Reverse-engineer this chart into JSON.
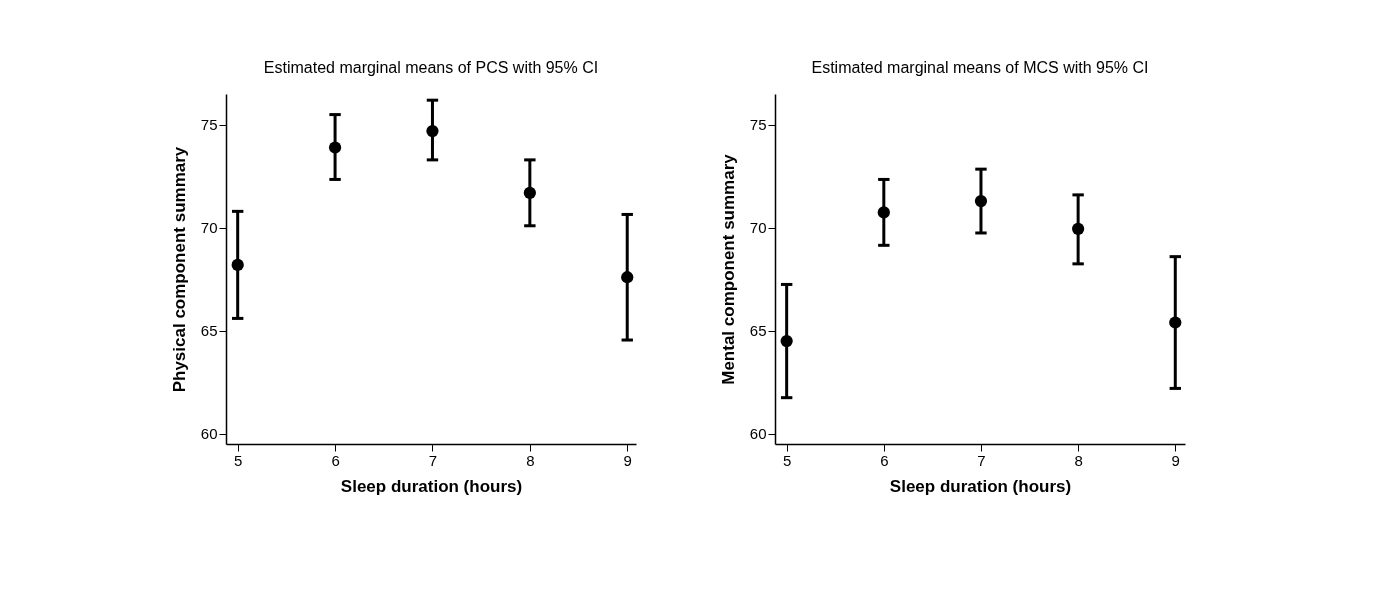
{
  "chart_data": [
    {
      "type": "scatter",
      "title": "Estimated marginal means of PCS with 95% CI",
      "xlabel": "Sleep duration (hours)",
      "ylabel": "Physical component summary",
      "x": [
        5,
        6,
        7,
        8,
        9
      ],
      "series": [
        {
          "color": "#000000",
          "values": [
            68.2,
            73.9,
            74.7,
            71.7,
            67.6
          ],
          "errors": [
            [
              65.6,
              70.8
            ],
            [
              72.35,
              75.5
            ],
            [
              73.3,
              76.2
            ],
            [
              70.1,
              73.3
            ],
            [
              64.55,
              70.65
            ]
          ]
        }
      ],
      "xlim": [
        4.88,
        9.09
      ],
      "ylim": [
        59.5,
        76.5
      ],
      "xticks": [
        5,
        6,
        7,
        8,
        9
      ],
      "yticks": [
        60,
        65,
        70,
        75
      ],
      "marker": "circle",
      "grid": false
    },
    {
      "type": "scatter",
      "title": "Estimated marginal means of MCS with 95% CI",
      "xlabel": "Sleep duration (hours)",
      "ylabel": "Mental component summary",
      "x": [
        5,
        6,
        7,
        8,
        9
      ],
      "series": [
        {
          "color": "#000000",
          "values": [
            64.5,
            70.75,
            71.3,
            69.95,
            65.4
          ],
          "errors": [
            [
              61.75,
              67.25
            ],
            [
              69.15,
              72.35
            ],
            [
              69.75,
              72.85
            ],
            [
              68.25,
              71.6
            ],
            [
              62.2,
              68.6
            ]
          ]
        }
      ],
      "xlim": [
        4.88,
        9.1
      ],
      "ylim": [
        59.5,
        76.5
      ],
      "xticks": [
        5,
        6,
        7,
        8,
        9
      ],
      "yticks": [
        60,
        65,
        70,
        75
      ],
      "marker": "circle",
      "grid": false
    }
  ]
}
